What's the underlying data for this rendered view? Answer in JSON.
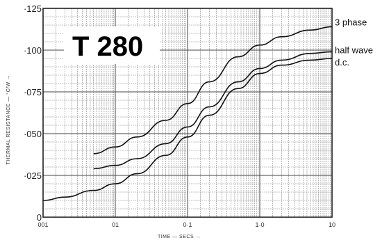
{
  "chart_data": {
    "type": "line",
    "title": "T 280",
    "xlabel": "TIME — SECS →",
    "ylabel": "THERMAL RESISTANCE — °C/W →",
    "x_scale": "log",
    "xlim": [
      0.001,
      10
    ],
    "ylim": [
      0,
      0.125
    ],
    "grid": true,
    "x_ticks": [
      {
        "value": 0.001,
        "label": "001"
      },
      {
        "value": 0.01,
        "label": "01"
      },
      {
        "value": 0.1,
        "label": "0·1"
      },
      {
        "value": 1,
        "label": "1·0"
      },
      {
        "value": 10,
        "label": "10"
      }
    ],
    "y_ticks": [
      {
        "value": 0,
        "label": "0"
      },
      {
        "value": 0.025,
        "label": "·025"
      },
      {
        "value": 0.05,
        "label": "·050"
      },
      {
        "value": 0.075,
        "label": "·075"
      },
      {
        "value": 0.1,
        "label": "·100"
      },
      {
        "value": 0.125,
        "label": "·125"
      }
    ],
    "series": [
      {
        "name": "3 phase",
        "x": [
          0.005,
          0.01,
          0.02,
          0.05,
          0.1,
          0.2,
          0.5,
          1,
          2,
          5,
          10
        ],
        "y": [
          0.038,
          0.042,
          0.048,
          0.058,
          0.068,
          0.081,
          0.096,
          0.103,
          0.108,
          0.112,
          0.114
        ]
      },
      {
        "name": "half wave",
        "x": [
          0.005,
          0.01,
          0.02,
          0.05,
          0.1,
          0.2,
          0.5,
          1,
          2,
          5,
          10
        ],
        "y": [
          0.029,
          0.031,
          0.035,
          0.044,
          0.054,
          0.066,
          0.081,
          0.089,
          0.094,
          0.098,
          0.099
        ]
      },
      {
        "name": "d.c.",
        "x": [
          0.001,
          0.002,
          0.005,
          0.01,
          0.02,
          0.05,
          0.1,
          0.2,
          0.5,
          1,
          2,
          5,
          10
        ],
        "y": [
          0.01,
          0.012,
          0.016,
          0.02,
          0.026,
          0.037,
          0.048,
          0.061,
          0.077,
          0.086,
          0.091,
          0.094,
          0.095
        ]
      }
    ]
  }
}
